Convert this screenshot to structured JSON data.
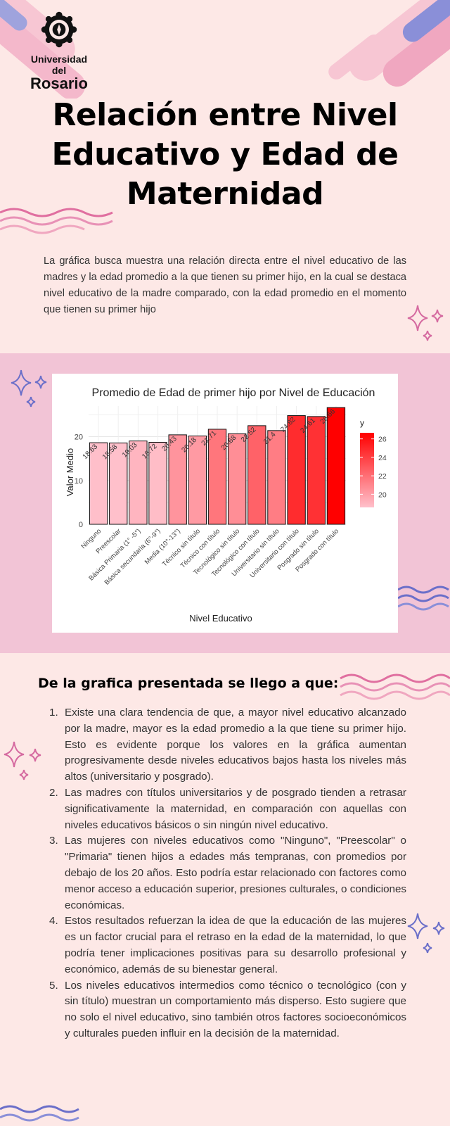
{
  "brand": {
    "line1": "Universidad del",
    "line2": "Rosario"
  },
  "title": "Relación entre Nivel Educativo y Edad de Maternidad",
  "intro": "La gráfica busca muestra una relación directa entre el nivel educativo de las madres y la edad promedio a la que tienen su primer hijo, en la cual se destaca nivel educativo de la madre comparado, con la edad promedio en el momento que tienen su primer hijo",
  "chart_data": {
    "type": "bar",
    "title": "Promedio de Edad de primer hijo por Nivel de Educación",
    "xlabel": "Nivel Educativo",
    "ylabel": "Valor Medio",
    "ylim": [
      0,
      27
    ],
    "yticks": [
      0,
      10,
      20
    ],
    "grid": true,
    "categories": [
      "Ninguno",
      "Preescolar",
      "Básica Primaria (1° -5°)",
      "Básica secundaria (6°-9°)",
      "Media (10°-13°)",
      "Técnico sin título",
      "Técnico con título",
      "Tecnológico sin título",
      "Tecnológico con título",
      "Universitario sin título",
      "Universitario con título",
      "Posgrado sin título",
      "Posgrado con título"
    ],
    "values": [
      18.63,
      18.58,
      19.03,
      18.72,
      20.43,
      20.18,
      21.71,
      20.68,
      22.52,
      21.4,
      24.82,
      24.61,
      26.66
    ],
    "data_labels": [
      "18.63",
      "18.58",
      "19.03",
      "18.72",
      "20.43",
      "20.18",
      "21.71",
      "20.68",
      "22.52",
      "21.4",
      "24.82",
      "24.61",
      "26.66"
    ],
    "legend": {
      "title": "y",
      "placement": "right",
      "ticks": [
        20,
        22,
        24,
        26
      ],
      "range": [
        18.58,
        26.66
      ],
      "color_low": "#ffc0cb",
      "color_high": "#ff0000"
    }
  },
  "conclusions": {
    "title": "De la grafica presentada se llego a que:",
    "items": [
      {
        "num": "1.",
        "text": "Existe una clara tendencia de que, a mayor nivel educativo alcanzado por la madre, mayor es la edad promedio a la que tiene su primer hijo. Esto es evidente porque los valores en la gráfica aumentan progresivamente desde niveles educativos bajos hasta los niveles más altos (universitario y posgrado)."
      },
      {
        "num": "2.",
        "text": "Las madres con títulos universitarios y de posgrado tienden a retrasar significativamente la maternidad, en comparación con aquellas con niveles educativos básicos o sin ningún nivel educativo."
      },
      {
        "num": "3.",
        "text": "Las mujeres con niveles educativos como \"Ninguno\", \"Preescolar\" o \"Primaria\" tienen hijos a edades más tempranas, con promedios por debajo de los 20 años. Esto podría estar relacionado con factores como menor acceso a educación superior, presiones culturales, o condiciones económicas."
      },
      {
        "num": "4.",
        "text": "Estos resultados refuerzan la idea de que la educación de las mujeres es un factor crucial para el retraso en la edad de la maternidad, lo que podría tener implicaciones positivas para su desarrollo profesional y económico, además de su bienestar general."
      },
      {
        "num": "5.",
        "text": "Los niveles educativos intermedios como técnico o tecnológico (con y sin título) muestran un comportamiento más disperso. Esto sugiere que no solo el nivel educativo, sino también otros factores socioeconómicos y culturales pueden influir en la decisión de la maternidad."
      }
    ]
  },
  "colors": {
    "background": "#fde8e6",
    "band": "#f2c4d6",
    "accent_pink": "#e06fa0",
    "accent_purple": "#8a8fd8"
  },
  "icons": [
    "crest-icon",
    "sparkle-icon",
    "wave-icon"
  ]
}
